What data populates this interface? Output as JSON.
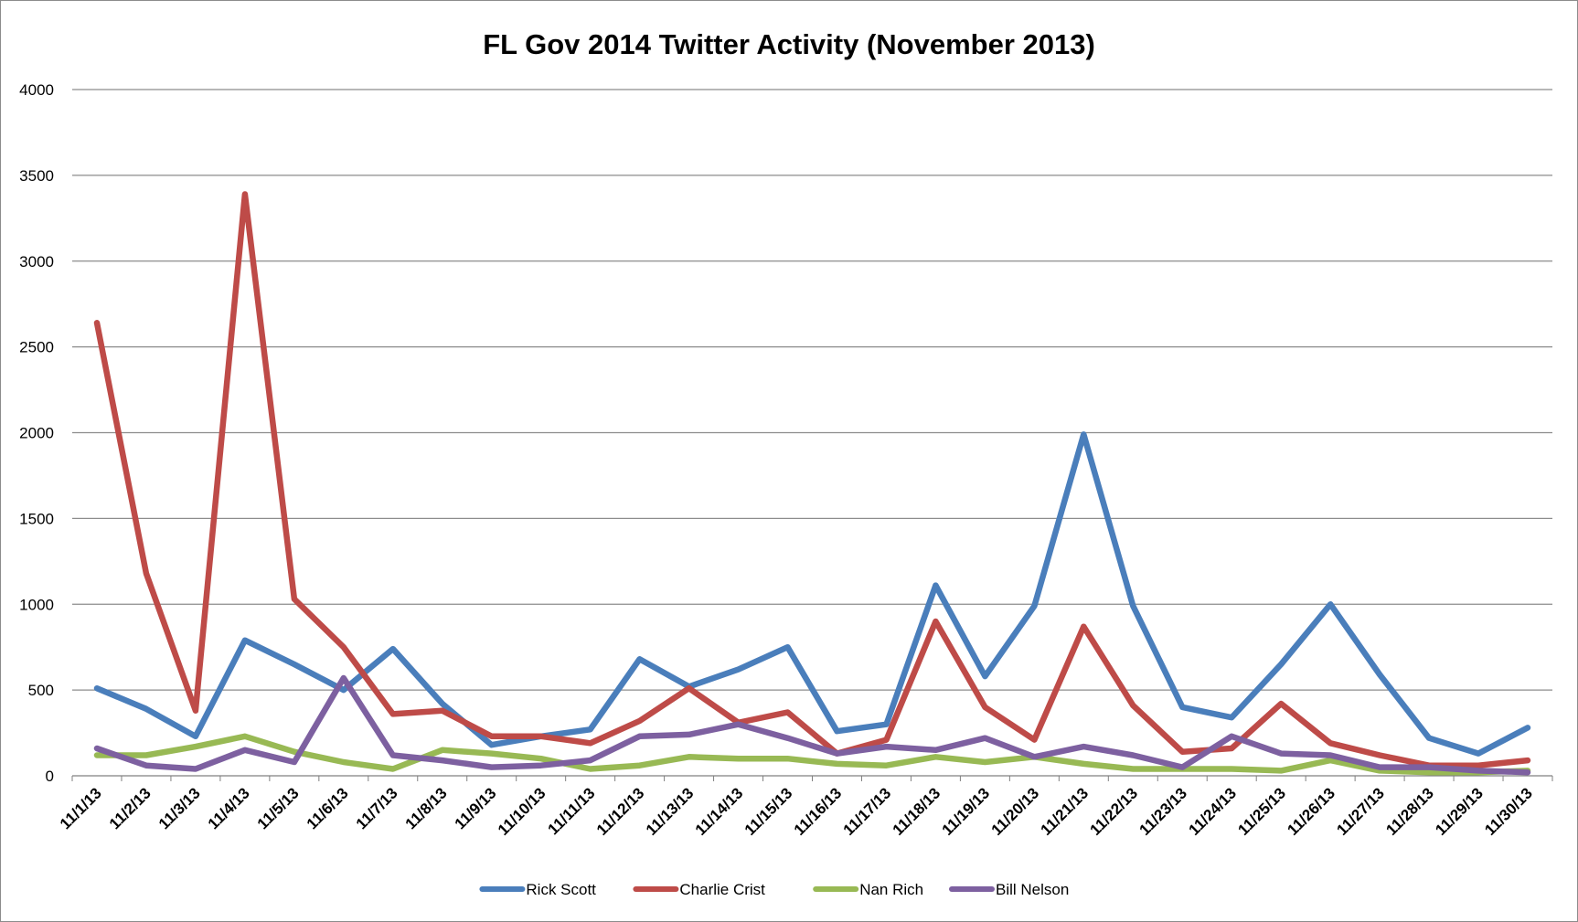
{
  "chart_data": {
    "type": "line",
    "title": "FL Gov 2014 Twitter Activity (November 2013)",
    "xlabel": "",
    "ylabel": "",
    "ylim": [
      0,
      4000
    ],
    "yticks": [
      "0",
      "500",
      "1000",
      "1500",
      "2000",
      "2500",
      "3000",
      "3500",
      "4000"
    ],
    "grid": true,
    "legend_position": "bottom",
    "categories": [
      "11/1/13",
      "11/2/13",
      "11/3/13",
      "11/4/13",
      "11/5/13",
      "11/6/13",
      "11/7/13",
      "11/8/13",
      "11/9/13",
      "11/10/13",
      "11/11/13",
      "11/12/13",
      "11/13/13",
      "11/14/13",
      "11/15/13",
      "11/16/13",
      "11/17/13",
      "11/18/13",
      "11/19/13",
      "11/20/13",
      "11/21/13",
      "11/22/13",
      "11/23/13",
      "11/24/13",
      "11/25/13",
      "11/26/13",
      "11/27/13",
      "11/28/13",
      "11/29/13",
      "11/30/13"
    ],
    "series": [
      {
        "name": "Rick Scott",
        "color": "#4a7ebb",
        "values": [
          510,
          390,
          230,
          790,
          650,
          500,
          740,
          420,
          180,
          230,
          270,
          680,
          520,
          620,
          750,
          260,
          300,
          1110,
          580,
          990,
          1990,
          990,
          400,
          340,
          650,
          1000,
          590,
          220,
          130,
          280
        ]
      },
      {
        "name": "Charlie Crist",
        "color": "#be4b48",
        "values": [
          2640,
          1180,
          380,
          3390,
          1030,
          750,
          360,
          380,
          230,
          230,
          190,
          320,
          510,
          310,
          370,
          130,
          210,
          900,
          400,
          210,
          870,
          410,
          140,
          160,
          420,
          190,
          120,
          60,
          60,
          90
        ]
      },
      {
        "name": "Nan Rich",
        "color": "#98b954",
        "values": [
          120,
          120,
          170,
          230,
          140,
          80,
          40,
          150,
          130,
          100,
          40,
          60,
          110,
          100,
          100,
          70,
          60,
          110,
          80,
          110,
          70,
          40,
          40,
          40,
          30,
          90,
          30,
          20,
          20,
          30
        ]
      },
      {
        "name": "Bill Nelson",
        "color": "#7d60a0",
        "values": [
          160,
          60,
          40,
          150,
          80,
          570,
          120,
          90,
          50,
          60,
          90,
          230,
          240,
          300,
          220,
          130,
          170,
          150,
          220,
          110,
          170,
          120,
          50,
          230,
          130,
          120,
          50,
          50,
          30,
          20
        ]
      }
    ]
  }
}
